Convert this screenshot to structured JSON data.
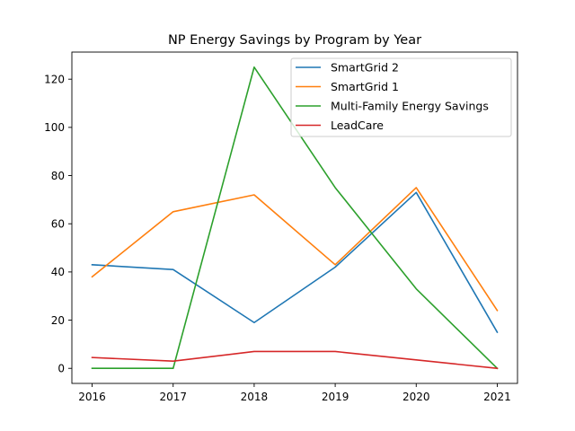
{
  "chart_data": {
    "type": "line",
    "title": "NP Energy Savings by Program by Year",
    "xlabel": "",
    "ylabel": "",
    "x": [
      2016,
      2017,
      2018,
      2019,
      2020,
      2021
    ],
    "xlim": [
      2015.75,
      2021.25
    ],
    "ylim": [
      -6.25,
      131.25
    ],
    "yticks": [
      0,
      20,
      40,
      60,
      80,
      100,
      120
    ],
    "grid": false,
    "legend_position": "upper right",
    "series": [
      {
        "name": "SmartGrid 2",
        "color": "#1f77b4",
        "values": [
          43,
          41,
          19,
          42,
          73,
          15
        ]
      },
      {
        "name": "SmartGrid 1",
        "color": "#ff7f0e",
        "values": [
          38,
          65,
          72,
          43,
          75,
          24
        ]
      },
      {
        "name": "Multi-Family Energy Savings",
        "color": "#2ca02c",
        "values": [
          0,
          0,
          125,
          75,
          33,
          0
        ]
      },
      {
        "name": "LeadCare",
        "color": "#d62728",
        "values": [
          4.5,
          3,
          7,
          7,
          3.5,
          0
        ]
      }
    ]
  }
}
